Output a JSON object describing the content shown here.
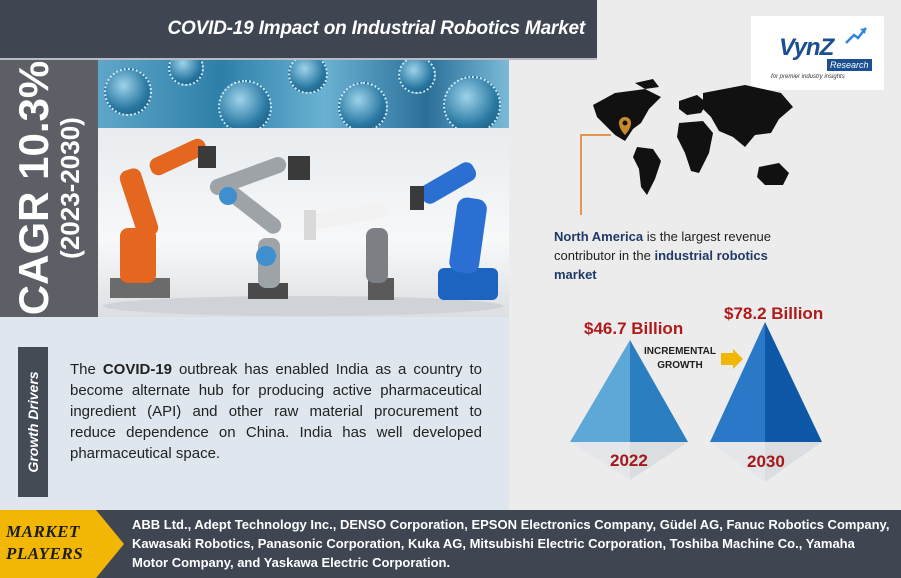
{
  "header": {
    "title": "COVID-19 Impact on Industrial Robotics Market"
  },
  "cagr": {
    "value": "CAGR 10.3%",
    "period": "(2023-2030)"
  },
  "logo": {
    "word": "VynZ",
    "tag": "Research",
    "tagline": "for premier industry insights"
  },
  "growth_drivers": {
    "label": "Growth Drivers",
    "text_pre": "The ",
    "text_bold": "COVID-19",
    "text_post": " outbreak has enabled India as a country to become alternate hub for producing active pharmaceutical ingredient (API) and other raw material procurement to reduce dependence on China. India has well developed pharmaceutical space."
  },
  "region": {
    "bold_region": "North America",
    "mid": " is the largest revenue contributor in the ",
    "bold_market": "industrial robotics market"
  },
  "market_size": {
    "value_2022": "$46.7 Billion",
    "value_2030": "$78.2 Billion",
    "incremental_line1": "INCREMENTAL",
    "incremental_line2": "GROWTH",
    "year_2022": "2022",
    "year_2030": "2030"
  },
  "players": {
    "label_line1": "MARKET",
    "label_line2": "PLAYERS",
    "text": "ABB Ltd., Adept Technology Inc., DENSO Corporation, EPSON Electronics Company, Güdel AG, Fanuc Robotics Company, Kawasaki Robotics, Panasonic Corporation, Kuka AG, Mitsubishi Electric Corporation, Toshiba Machine Co., Yamaha Motor Company, and Yaskawa Electric Corporation."
  },
  "colors": {
    "dark_panel": "#3f4652",
    "accent_gold": "#f2b705",
    "value_red": "#b01a1a",
    "pyramid_light": "#4a9ad0",
    "pyramid_dark": "#1665b3"
  }
}
